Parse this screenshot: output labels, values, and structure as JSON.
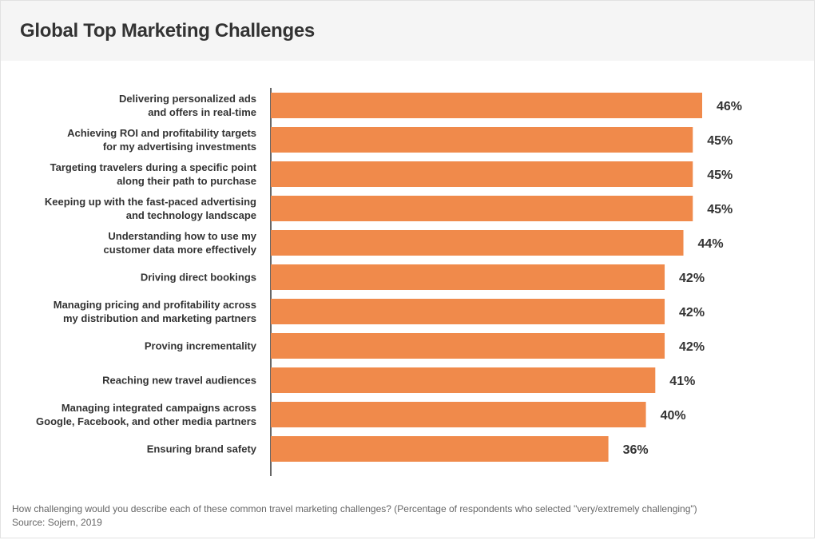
{
  "title": "Global Top Marketing Challenges",
  "footnote": {
    "question": "How challenging would you describe each of these common travel marketing challenges? (Percentage of respondents who selected \"very/extremely challenging\")",
    "source": "Source: Sojern, 2019"
  },
  "colors": {
    "bar": "#f08a4b",
    "axis": "#333333"
  },
  "chart_data": {
    "type": "bar",
    "orientation": "horizontal",
    "categories": [
      [
        "Delivering personalized ads",
        "and offers in real-time"
      ],
      [
        "Achieving ROI and profitability targets",
        "for my advertising investments"
      ],
      [
        "Targeting travelers during a specific point",
        "along their path to purchase"
      ],
      [
        "Keeping up with the fast-paced advertising",
        "and technology landscape"
      ],
      [
        "Understanding how to use my",
        "customer data more effectively"
      ],
      [
        "Driving direct bookings"
      ],
      [
        "Managing pricing and profitability across",
        "my distribution and marketing partners"
      ],
      [
        "Proving incrementality"
      ],
      [
        "Reaching new travel audiences"
      ],
      [
        "Managing integrated campaigns across",
        "Google, Facebook, and other media partners"
      ],
      [
        "Ensuring brand safety"
      ]
    ],
    "values": [
      46,
      45,
      45,
      45,
      44,
      42,
      42,
      42,
      41,
      40,
      36
    ],
    "value_labels": [
      "46%",
      "45%",
      "45%",
      "45%",
      "44%",
      "42%",
      "42%",
      "42%",
      "41%",
      "40%",
      "36%"
    ],
    "unit": "%",
    "xlim": [
      0,
      46
    ],
    "grid": false,
    "legend": "none"
  }
}
